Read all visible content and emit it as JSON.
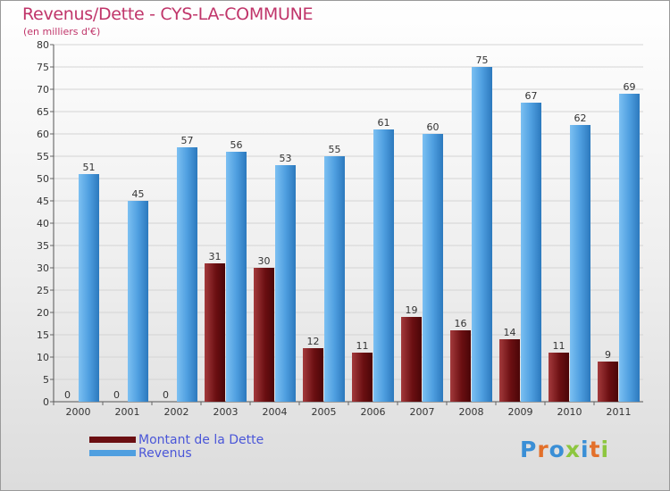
{
  "header": {
    "title": "Revenus/Dette - CYS-LA-COMMUNE",
    "subtitle": "(en milliers d'€)"
  },
  "legend": [
    {
      "label": "Montant de la Dette",
      "color": "#6b0f12"
    },
    {
      "label": "Revenus",
      "color": "#4f9fe0"
    }
  ],
  "logo": {
    "text": "Proxiti",
    "colors": [
      "#3a8fd6",
      "#e3702a",
      "#3a8fd6",
      "#8dc63f",
      "#3a8fd6",
      "#e3702a",
      "#8dc63f"
    ]
  },
  "chart_data": {
    "type": "bar",
    "title": "Revenus/Dette - CYS-LA-COMMUNE",
    "ylabel": "(en milliers d'€)",
    "xlabel": "",
    "categories": [
      "2000",
      "2001",
      "2002",
      "2003",
      "2004",
      "2005",
      "2006",
      "2007",
      "2008",
      "2009",
      "2010",
      "2011"
    ],
    "series": [
      {
        "name": "Montant de la Dette",
        "color": "#6b0f12",
        "values": [
          0,
          0,
          0,
          31,
          30,
          12,
          11,
          19,
          16,
          14,
          11,
          9
        ]
      },
      {
        "name": "Revenus",
        "color": "#4f9fe0",
        "values": [
          51,
          45,
          57,
          56,
          53,
          55,
          61,
          60,
          75,
          67,
          62,
          69
        ]
      }
    ],
    "ylim": [
      0,
      80
    ],
    "ytick_step": 5,
    "grid": true,
    "legend_position": "bottom-left"
  }
}
